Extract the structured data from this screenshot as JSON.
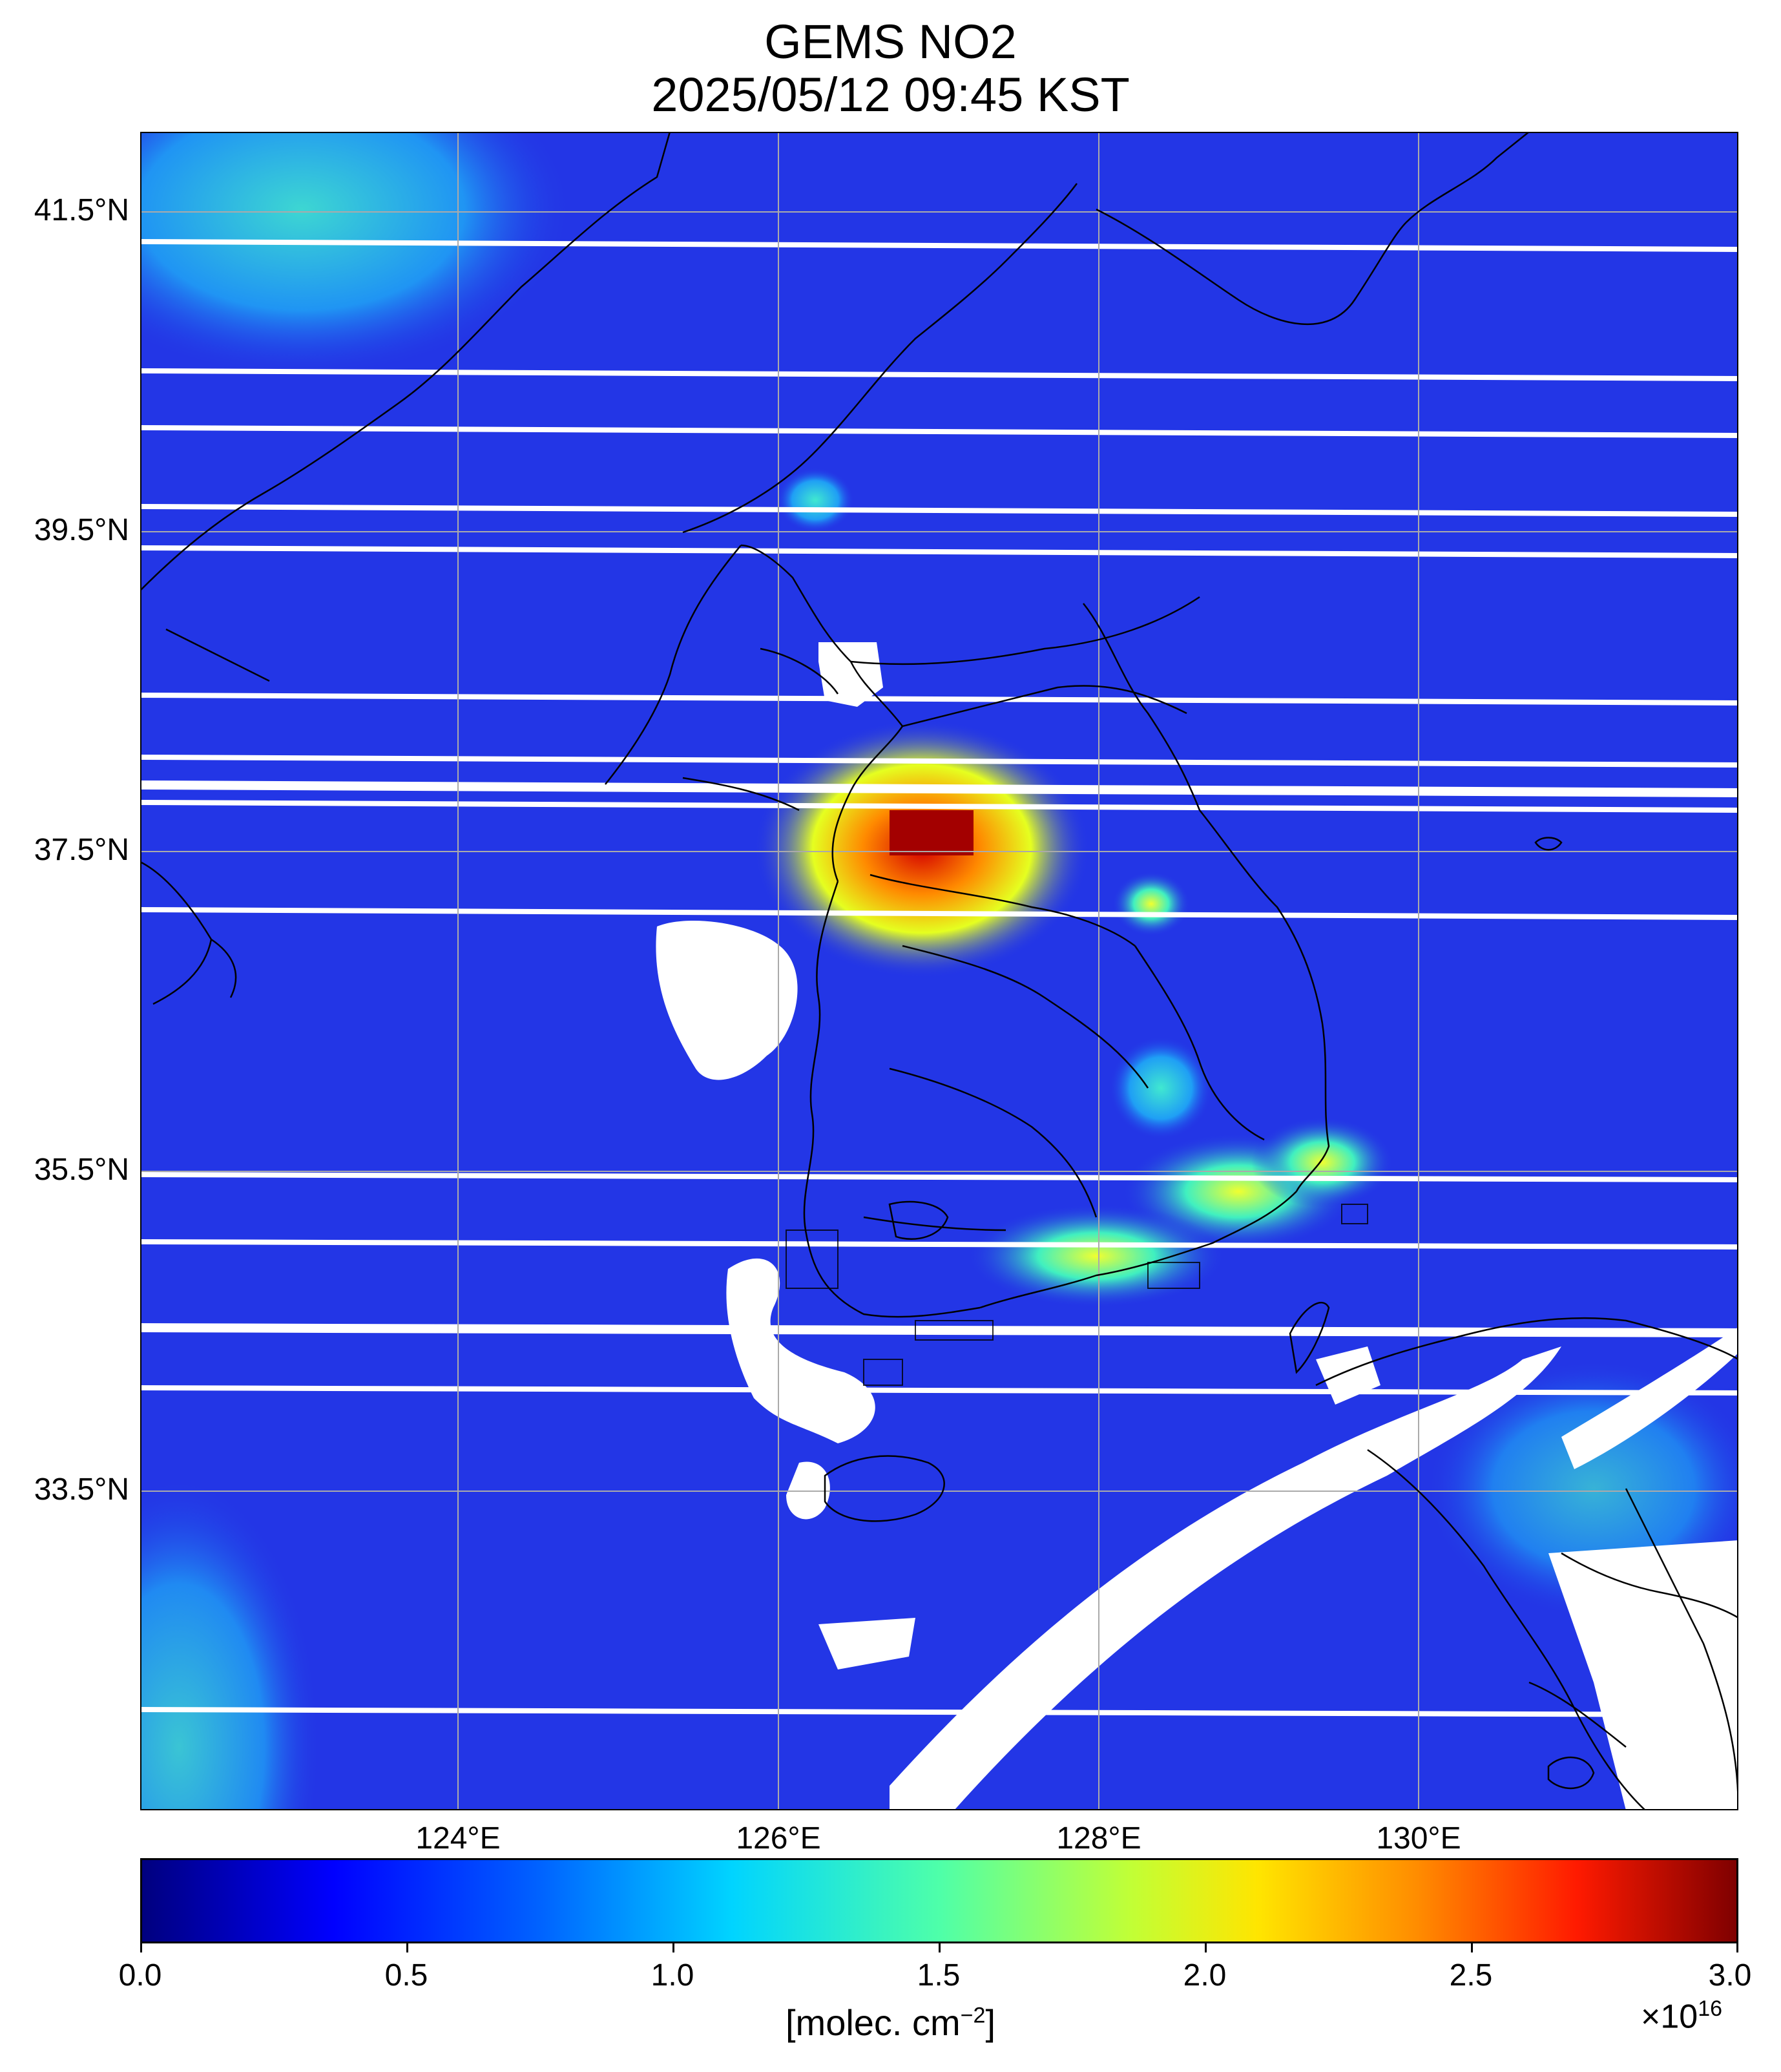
{
  "title": {
    "line1": "GEMS NO2",
    "line2": "2025/05/12 09:45 KST"
  },
  "map": {
    "lat_ticks": [
      "41.5°N",
      "39.5°N",
      "37.5°N",
      "35.5°N",
      "33.5°N"
    ],
    "lon_ticks": [
      "124°E",
      "126°E",
      "128°E",
      "130°E"
    ],
    "colors": {
      "background_field": "#2336e6",
      "no_data": "#ffffff",
      "hotspot": "#b00000",
      "coastline": "#000000",
      "gridline": "#aaaaaa"
    }
  },
  "colorbar": {
    "tick_labels": [
      "0.0",
      "0.5",
      "1.0",
      "1.5",
      "2.0",
      "2.5",
      "3.0"
    ],
    "unit_text": "[molec. cm",
    "unit_exponent": "−2",
    "unit_close": "]",
    "scale_text": "×10",
    "scale_exponent": "16",
    "colormap": "jet"
  }
}
